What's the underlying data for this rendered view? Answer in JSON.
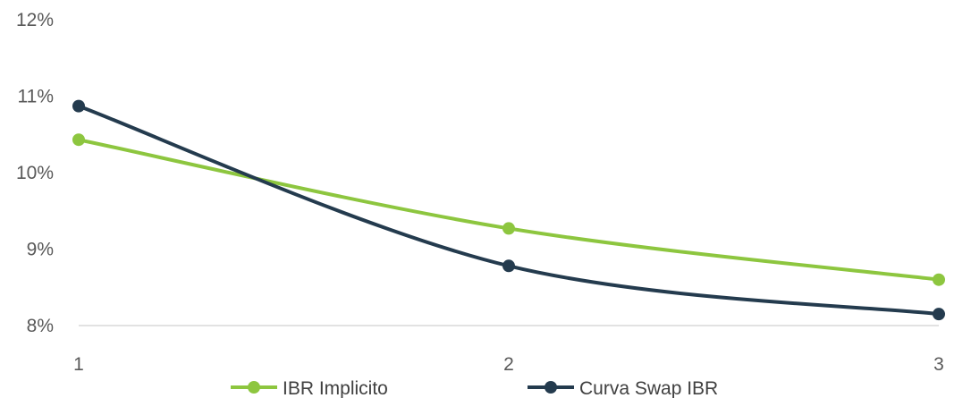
{
  "chart_data": {
    "type": "line",
    "x": [
      1,
      2,
      3
    ],
    "x_tick_labels": [
      "1",
      "2",
      "3"
    ],
    "y_tick_labels": [
      "8%",
      "9%",
      "10%",
      "11%",
      "12%"
    ],
    "ylim": [
      8,
      12
    ],
    "y_unit": "%",
    "grid": false,
    "legend_position": "bottom",
    "series": [
      {
        "name": "IBR Implicito",
        "color": "#8DC63F",
        "values": [
          10.43,
          9.27,
          8.6
        ]
      },
      {
        "name": "Curva Swap IBR",
        "color": "#243B4E",
        "values": [
          10.87,
          8.78,
          8.15
        ]
      }
    ]
  }
}
